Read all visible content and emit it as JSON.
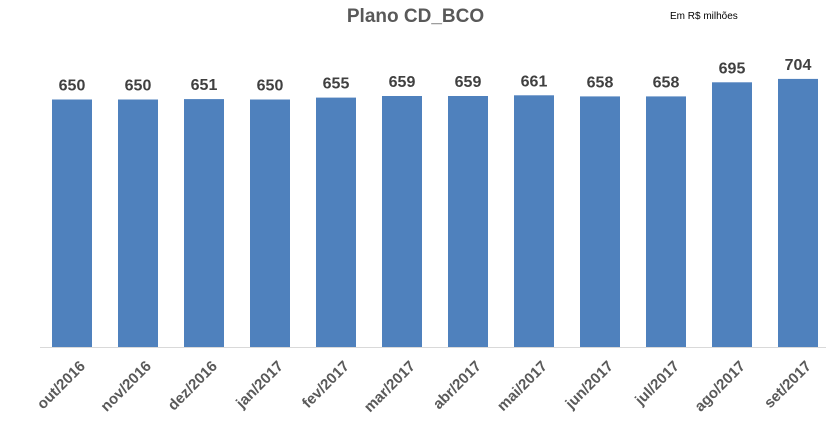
{
  "chart_data": {
    "type": "bar",
    "title": "Plano CD_BCO",
    "unit_note": "Em R$ milhões",
    "categories": [
      "out/2016",
      "nov/2016",
      "dez/2016",
      "jan/2017",
      "fev/2017",
      "mar/2017",
      "abr/2017",
      "mai/2017",
      "jun/2017",
      "jul/2017",
      "ago/2017",
      "set/2017"
    ],
    "values": [
      650,
      650,
      651,
      650,
      655,
      659,
      659,
      661,
      658,
      658,
      695,
      704
    ],
    "ylim": [
      0,
      730
    ],
    "xlabel": "",
    "ylabel": "",
    "grid": false,
    "legend": "none",
    "bar_color": "#4f81bd",
    "axis_color": "#d9d9d9"
  }
}
